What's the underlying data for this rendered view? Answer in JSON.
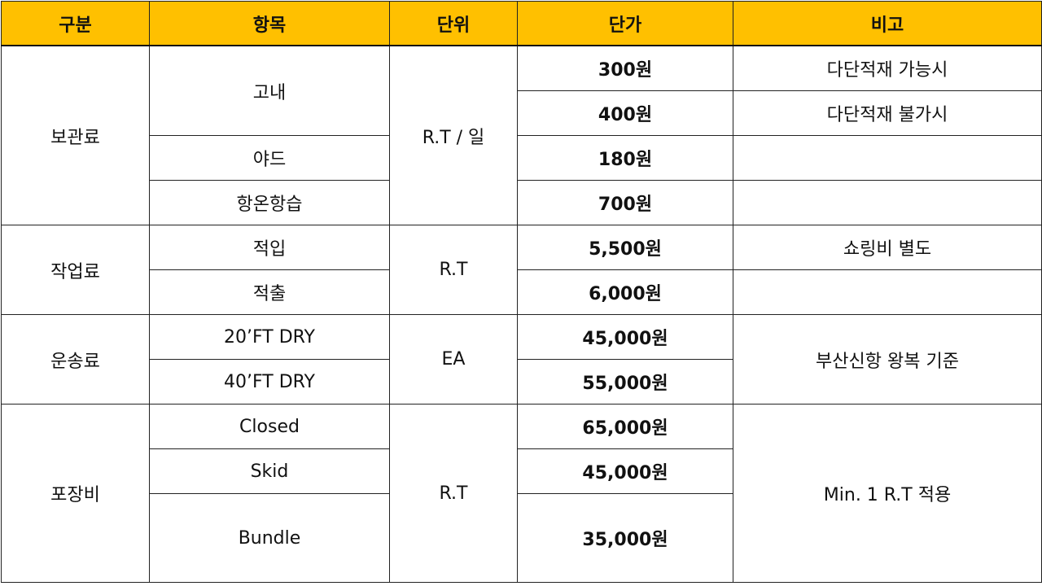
{
  "colors": {
    "header_bg": "#FFC000",
    "border": "#222222"
  },
  "headers": [
    "구분",
    "항목",
    "단위",
    "단가",
    "비고"
  ],
  "storage": {
    "category": "보관료",
    "unit": "R.T / 일",
    "items": [
      "고내",
      "야드",
      "항온항습"
    ],
    "prices": [
      "300원",
      "400원",
      "180원",
      "700원"
    ],
    "notes": [
      "다단적재 가능시",
      "다단적재 불가시",
      "",
      ""
    ]
  },
  "work": {
    "category": "작업료",
    "unit": "R.T",
    "items": [
      "적입",
      "적출"
    ],
    "prices": [
      "5,500원",
      "6,000원"
    ],
    "notes": [
      "쇼링비 별도",
      ""
    ]
  },
  "transport": {
    "category": "운송료",
    "unit": "EA",
    "items": [
      "20’FT DRY",
      "40’FT DRY"
    ],
    "prices": [
      "45,000원",
      "55,000원"
    ],
    "note": "부산신항 왕복 기준"
  },
  "packing": {
    "category": "포장비",
    "unit": "R.T",
    "items": [
      "Closed",
      "Skid",
      "Bundle"
    ],
    "prices": [
      "65,000원",
      "45,000원",
      "35,000원"
    ],
    "note": "Min. 1 R.T 적용"
  }
}
